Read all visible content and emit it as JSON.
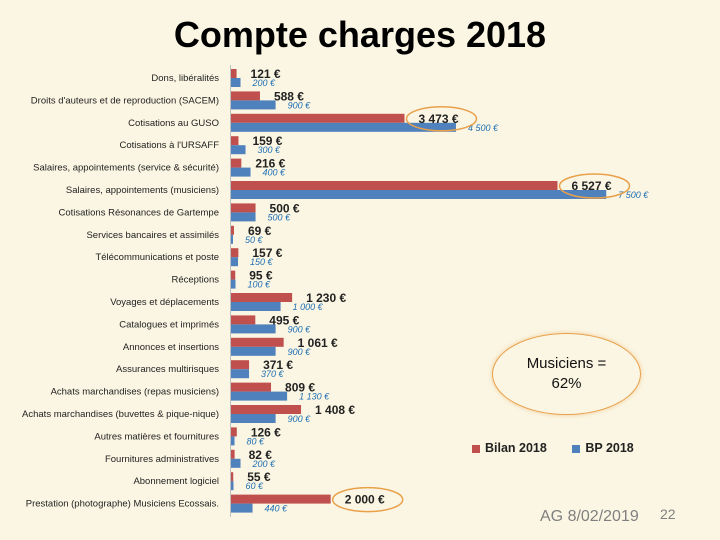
{
  "title": "Compte charges 2018",
  "callout": {
    "line1": "Musiciens =",
    "line2": "62%"
  },
  "footer": {
    "text": "AG 8/02/2019",
    "page": "22"
  },
  "colors": {
    "bilan": "#c0504d",
    "bp": "#4f81bd",
    "highlight": "#e8a04a"
  },
  "chart_data": {
    "type": "bar",
    "orientation": "horizontal",
    "categories": [
      "Dons, libéralités",
      "Droits d'auteurs et de reproduction (SACEM)",
      "Cotisations au GUSO",
      "Cotisations à l'URSAFF",
      "Salaires, appointements (service & sécurité)",
      "Salaires, appointements (musiciens)",
      "Cotisations Résonances de Gartempe",
      "Services bancaires et assimilés",
      "Télécommunications et poste",
      "Réceptions",
      "Voyages et déplacements",
      "Catalogues et imprimés",
      "Annonces et insertions",
      "Assurances multirisques",
      "Achats marchandises (repas musiciens)",
      "Achats marchandises (buvettes & pique-nique)",
      "Autres matières et fournitures",
      "Fournitures administratives",
      "Abonnement logiciel",
      "Prestation (photographe) Musiciens Ecossais."
    ],
    "series": [
      {
        "name": "Bilan 2018",
        "values": [
          121,
          588,
          3473,
          159,
          216,
          6527,
          500,
          69,
          157,
          95,
          1230,
          495,
          1061,
          371,
          809,
          1408,
          126,
          82,
          55,
          2000
        ],
        "labels": [
          "121 €",
          "588 €",
          "3 473 €",
          "159 €",
          "216 €",
          "6 527 €",
          "500 €",
          "69 €",
          "157 €",
          "95 €",
          "1 230 €",
          "495 €",
          "1 061 €",
          "371 €",
          "809 €",
          "1 408 €",
          "126 €",
          "82 €",
          "55 €",
          "2 000 €"
        ]
      },
      {
        "name": "BP 2018",
        "values": [
          200,
          900,
          4500,
          300,
          400,
          7500,
          500,
          50,
          150,
          100,
          1000,
          900,
          900,
          370,
          1130,
          900,
          80,
          200,
          60,
          440
        ],
        "labels": [
          "200 €",
          "900 €",
          "4 500 €",
          "300 €",
          "400 €",
          "7 500 €",
          "500 €",
          "50 €",
          "150 €",
          "100 €",
          "1 000 €",
          "900 €",
          "900 €",
          "370 €",
          "1 130 €",
          "900 €",
          "80 €",
          "200 €",
          "60 €",
          "440 €"
        ]
      }
    ],
    "highlighted_categories": [
      2,
      5,
      19
    ],
    "legend_position": "bottom-right",
    "grid": false
  }
}
